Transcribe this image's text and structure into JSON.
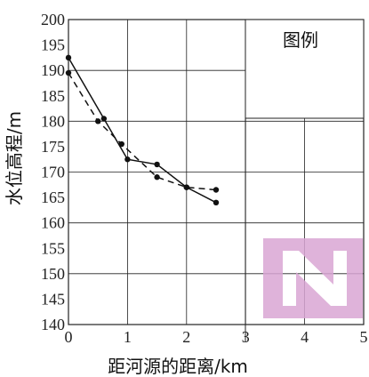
{
  "chart_data": {
    "type": "line",
    "title": "",
    "xlabel": "距河源的距离/km",
    "ylabel": "水位高程/m",
    "xlim": [
      0,
      5
    ],
    "ylim": [
      140,
      200
    ],
    "x_ticks": [
      "0",
      "1",
      "2",
      "3",
      "4",
      "5"
    ],
    "y_ticks": [
      "140",
      "145",
      "150",
      "155",
      "160",
      "165",
      "170",
      "175",
      "180",
      "185",
      "190",
      "195",
      "200"
    ],
    "grid": true,
    "legend_title": "图例",
    "legend_position": "top-right",
    "series": [
      {
        "line_style": "solid",
        "x": [
          0,
          0.6,
          1.0,
          1.5,
          2.0,
          2.5
        ],
        "y": [
          192.5,
          180.5,
          172.5,
          171.5,
          167.0,
          164.0
        ]
      },
      {
        "line_style": "dashed",
        "x": [
          0,
          0.5,
          0.9,
          1.5,
          2.0,
          2.5
        ],
        "y": [
          189.5,
          180.0,
          175.5,
          169.0,
          167.0,
          166.5
        ]
      }
    ],
    "watermark": "N",
    "colors": {
      "line": "#111111",
      "grid": "#222222",
      "watermark": "#d9a6d4"
    }
  }
}
